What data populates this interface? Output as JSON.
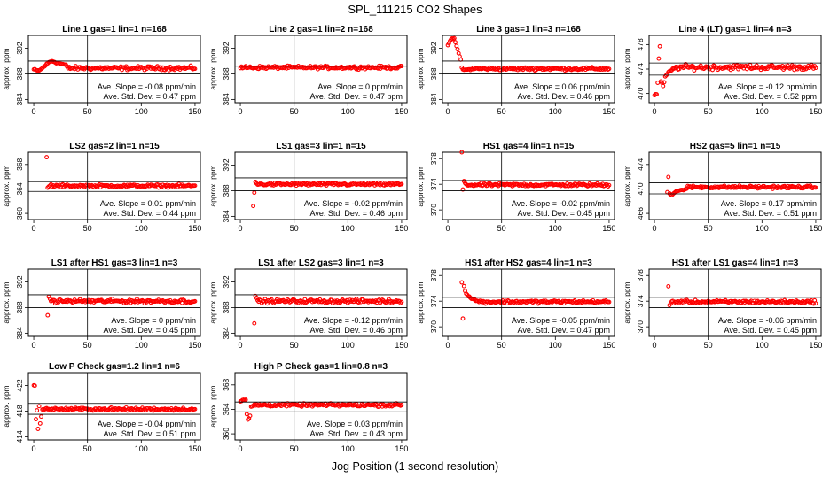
{
  "figure": {
    "title": "SPL_111215  CO2 Shapes",
    "xlabel": "Jog Position (1 second resolution)"
  },
  "chart_data": [
    {
      "type": "scatter",
      "title": "Line 1 gas=1 lin=1 n=168",
      "ylabel": "approx. ppm",
      "xlim": [
        -5,
        155
      ],
      "ylim": [
        383.5,
        394
      ],
      "xticks": [
        0,
        50,
        100,
        150
      ],
      "yticks": [
        384,
        388,
        392
      ],
      "hlines": [
        390,
        388
      ],
      "vline": 50,
      "start": 0,
      "baseline": 388.9,
      "noise": 0.25,
      "transient": [
        [
          0,
          388.7
        ],
        [
          3,
          388.5
        ],
        [
          6,
          388.6
        ],
        [
          10,
          389.2
        ],
        [
          14,
          389.8
        ],
        [
          17,
          390.0
        ],
        [
          22,
          389.7
        ],
        [
          30,
          389.4
        ]
      ],
      "slope_label": "Ave. Slope = -0.08  ppm/min",
      "sd_label": "Ave. Std. Dev. = 0.47  ppm"
    },
    {
      "type": "scatter",
      "title": "Line 2 gas=1 lin=2 n=168",
      "ylabel": "approx. ppm",
      "xlim": [
        -5,
        155
      ],
      "ylim": [
        383.5,
        394
      ],
      "xticks": [
        0,
        50,
        100,
        150
      ],
      "yticks": [
        384,
        388,
        392
      ],
      "hlines": [
        389.2
      ],
      "vline": 50,
      "start": 0,
      "baseline": 389.0,
      "noise": 0.2,
      "transient": [],
      "slope_label": "Ave. Slope = 0  ppm/min",
      "sd_label": "Ave. Std. Dev. = 0.47  ppm"
    },
    {
      "type": "scatter",
      "title": "Line 3 gas=1 lin=3 n=168",
      "ylabel": "approx. ppm",
      "xlim": [
        -5,
        155
      ],
      "ylim": [
        383.5,
        394
      ],
      "xticks": [
        0,
        50,
        100,
        150
      ],
      "yticks": [
        384,
        388,
        392
      ],
      "hlines": [
        390,
        388
      ],
      "vline": 50,
      "start": 0,
      "baseline": 388.8,
      "noise": 0.2,
      "transient": [
        [
          0,
          392.5
        ],
        [
          3,
          393.4
        ],
        [
          6,
          393.5
        ],
        [
          8,
          392.4
        ],
        [
          10,
          391.2
        ],
        [
          12,
          390.2
        ],
        [
          13,
          389.0
        ],
        [
          15,
          388.6
        ],
        [
          20,
          388.7
        ]
      ],
      "slope_label": "Ave. Slope = 0.06  ppm/min",
      "sd_label": "Ave. Std. Dev. = 0.46  ppm"
    },
    {
      "type": "scatter",
      "title": "Line 4 (LT) gas=1 lin=4 n=3",
      "ylabel": "approx. ppm",
      "xlim": [
        -5,
        155
      ],
      "ylim": [
        468.5,
        479.5
      ],
      "xticks": [
        0,
        50,
        100,
        150
      ],
      "yticks": [
        470,
        474,
        478
      ],
      "hlines": [
        475,
        473
      ],
      "vline": 50,
      "start": 0,
      "baseline": 474.3,
      "noise": 0.35,
      "transient": [
        [
          2,
          469.8
        ],
        [
          3,
          471.8
        ],
        [
          4,
          475.8
        ],
        [
          5,
          477.6
        ],
        [
          6,
          472.0
        ],
        [
          8,
          471.2
        ],
        [
          10,
          472.7
        ],
        [
          14,
          473.6
        ],
        [
          20,
          474.3
        ]
      ],
      "slope_label": "Ave. Slope = -0.12  ppm/min",
      "sd_label": "Ave. Std. Dev. = 0.52  ppm"
    },
    {
      "type": "scatter",
      "title": "LS2 gas=2 lin=1 n=15",
      "ylabel": "approx. ppm",
      "xlim": [
        -5,
        155
      ],
      "ylim": [
        359,
        370
      ],
      "xticks": [
        0,
        50,
        100,
        150
      ],
      "yticks": [
        360,
        364,
        368
      ],
      "hlines": [
        365.2,
        363.6
      ],
      "vline": 50,
      "start": 12,
      "baseline": 364.5,
      "noise": 0.2,
      "transient": [
        [
          12,
          369.1
        ],
        [
          13,
          364.2
        ],
        [
          16,
          364.7
        ]
      ],
      "slope_label": "Ave. Slope = 0.01  ppm/min",
      "sd_label": "Ave. Std. Dev. = 0.44  ppm"
    },
    {
      "type": "scatter",
      "title": "LS1 gas=3 lin=1 n=15",
      "ylabel": "approx. ppm",
      "xlim": [
        -5,
        155
      ],
      "ylim": [
        383.5,
        394
      ],
      "xticks": [
        0,
        50,
        100,
        150
      ],
      "yticks": [
        384,
        388,
        392
      ],
      "hlines": [
        390,
        388
      ],
      "vline": 50,
      "start": 12,
      "baseline": 389.0,
      "noise": 0.2,
      "transient": [
        [
          12,
          385.6
        ],
        [
          13,
          387.7
        ],
        [
          14,
          389.4
        ],
        [
          16,
          389.0
        ]
      ],
      "slope_label": "Ave. Slope = -0.02  ppm/min",
      "sd_label": "Ave. Std. Dev. = 0.46  ppm"
    },
    {
      "type": "scatter",
      "title": "HS1 gas=4 lin=1 n=15",
      "ylabel": "approx. ppm",
      "xlim": [
        -5,
        155
      ],
      "ylim": [
        368.5,
        379
      ],
      "xticks": [
        0,
        50,
        100,
        150
      ],
      "yticks": [
        370,
        374,
        378
      ],
      "hlines": [
        374.6,
        373.0
      ],
      "vline": 50,
      "start": 13,
      "baseline": 373.9,
      "noise": 0.2,
      "transient": [
        [
          13,
          379.2
        ],
        [
          14,
          373.2
        ],
        [
          15,
          374.4
        ],
        [
          17,
          374.0
        ]
      ],
      "slope_label": "Ave. Slope = -0.02  ppm/min",
      "sd_label": "Ave. Std. Dev. = 0.45  ppm"
    },
    {
      "type": "scatter",
      "title": "HS2 gas=5 lin=1 n=15",
      "ylabel": "approx. ppm",
      "xlim": [
        -5,
        155
      ],
      "ylim": [
        465,
        476
      ],
      "xticks": [
        0,
        50,
        100,
        150
      ],
      "yticks": [
        466,
        470,
        474
      ],
      "hlines": [
        471,
        469.2
      ],
      "vline": 50,
      "start": 12,
      "baseline": 470.3,
      "noise": 0.2,
      "transient": [
        [
          12,
          469.5
        ],
        [
          13,
          472.0
        ],
        [
          14,
          469.3
        ],
        [
          16,
          469.0
        ],
        [
          20,
          469.6
        ],
        [
          30,
          470.0
        ]
      ],
      "slope_label": "Ave. Slope = 0.17  ppm/min",
      "sd_label": "Ave. Std. Dev. = 0.51  ppm"
    },
    {
      "type": "scatter",
      "title": "LS1 after HS1 gas=3 lin=1 n=3",
      "ylabel": "approx. ppm",
      "xlim": [
        -5,
        155
      ],
      "ylim": [
        383.5,
        394
      ],
      "xticks": [
        0,
        50,
        100,
        150
      ],
      "yticks": [
        384,
        388,
        392
      ],
      "hlines": [
        390,
        388
      ],
      "vline": 50,
      "start": 13,
      "baseline": 389.0,
      "noise": 0.25,
      "transient": [
        [
          13,
          386.8
        ],
        [
          14,
          389.6
        ],
        [
          16,
          389.1
        ]
      ],
      "slope_label": "Ave. Slope = 0  ppm/min",
      "sd_label": "Ave. Std. Dev. = 0.45  ppm"
    },
    {
      "type": "scatter",
      "title": "LS1 after LS2 gas=3 lin=1 n=3",
      "ylabel": "approx. ppm",
      "xlim": [
        -5,
        155
      ],
      "ylim": [
        383.5,
        394
      ],
      "xticks": [
        0,
        50,
        100,
        150
      ],
      "yticks": [
        384,
        388,
        392
      ],
      "hlines": [
        390,
        388
      ],
      "vline": 50,
      "start": 13,
      "baseline": 389.0,
      "noise": 0.25,
      "transient": [
        [
          13,
          385.5
        ],
        [
          14,
          389.7
        ],
        [
          16,
          389.2
        ]
      ],
      "slope_label": "Ave. Slope = -0.12  ppm/min",
      "sd_label": "Ave. Std. Dev. = 0.46  ppm"
    },
    {
      "type": "scatter",
      "title": "HS1 after HS2 gas=4 lin=1 n=3",
      "ylabel": "approx. ppm",
      "xlim": [
        -5,
        155
      ],
      "ylim": [
        368.5,
        379
      ],
      "xticks": [
        0,
        50,
        100,
        150
      ],
      "yticks": [
        370,
        374,
        378
      ],
      "hlines": [
        374.6,
        373.0
      ],
      "vline": 50,
      "start": 13,
      "baseline": 373.9,
      "noise": 0.2,
      "transient": [
        [
          13,
          377.0
        ],
        [
          14,
          371.3
        ],
        [
          15,
          376.3
        ],
        [
          16,
          375.7
        ],
        [
          17,
          375.2
        ],
        [
          19,
          374.8
        ],
        [
          22,
          374.4
        ],
        [
          28,
          374.0
        ]
      ],
      "slope_label": "Ave. Slope = -0.05  ppm/min",
      "sd_label": "Ave. Std. Dev. = 0.47  ppm"
    },
    {
      "type": "scatter",
      "title": "HS1 after LS1 gas=4 lin=1 n=3",
      "ylabel": "approx. ppm",
      "xlim": [
        -5,
        155
      ],
      "ylim": [
        368.5,
        379
      ],
      "xticks": [
        0,
        50,
        100,
        150
      ],
      "yticks": [
        370,
        374,
        378
      ],
      "hlines": [
        374.6,
        373.0
      ],
      "vline": 50,
      "start": 13,
      "baseline": 373.9,
      "noise": 0.2,
      "transient": [
        [
          13,
          376.3
        ],
        [
          14,
          373.4
        ],
        [
          16,
          373.9
        ]
      ],
      "slope_label": "Ave. Slope = -0.06  ppm/min",
      "sd_label": "Ave. Std. Dev. = 0.45  ppm"
    },
    {
      "type": "scatter",
      "title": "Low P Check gas=1.2 lin=1 n=6",
      "ylabel": "approx. ppm",
      "xlim": [
        -5,
        155
      ],
      "ylim": [
        413.5,
        424
      ],
      "xticks": [
        0,
        50,
        100,
        150
      ],
      "yticks": [
        414,
        418,
        422
      ],
      "hlines": [
        419.2,
        417.5
      ],
      "vline": 50,
      "start": 0,
      "baseline": 418.3,
      "noise": 0.2,
      "transient": [
        [
          1,
          422.0
        ],
        [
          2,
          416.7
        ],
        [
          3,
          418.1
        ],
        [
          4,
          415.2
        ],
        [
          5,
          418.8
        ],
        [
          6,
          416.0
        ],
        [
          8,
          418.2
        ],
        [
          12,
          418.5
        ]
      ],
      "slope_label": "Ave. Slope = -0.04  ppm/min",
      "sd_label": "Ave. Std. Dev. = 0.51  ppm"
    },
    {
      "type": "scatter",
      "title": "High P Check gas=1 lin=0.8 n=3",
      "ylabel": "approx. ppm",
      "xlim": [
        -5,
        155
      ],
      "ylim": [
        359,
        370
      ],
      "xticks": [
        0,
        50,
        100,
        150
      ],
      "yticks": [
        360,
        364,
        368
      ],
      "hlines": [
        365.2,
        363.6
      ],
      "vline": 50,
      "start": 0,
      "baseline": 364.7,
      "noise": 0.2,
      "transient": [
        [
          1,
          365.3
        ],
        [
          3,
          365.6
        ],
        [
          5,
          365.5
        ],
        [
          6,
          363.2
        ],
        [
          7,
          362.3
        ],
        [
          8,
          362.5
        ],
        [
          9,
          363.0
        ],
        [
          10,
          364.4
        ],
        [
          12,
          364.6
        ]
      ],
      "slope_label": "Ave. Slope = 0.03  ppm/min",
      "sd_label": "Ave. Std. Dev. = 0.43  ppm"
    }
  ],
  "colors": {
    "points": "#ff0000",
    "axes": "#000000"
  }
}
